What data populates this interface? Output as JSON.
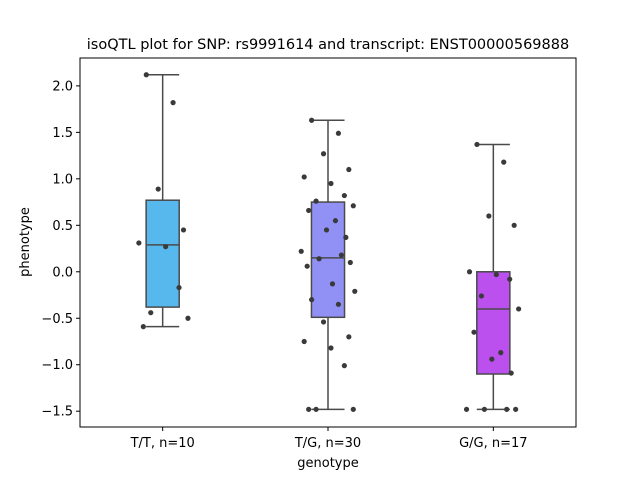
{
  "chart_data": {
    "type": "box",
    "title": "isoQTL plot for SNP: rs9991614 and transcript: ENST00000569888",
    "xlabel": "genotype",
    "ylabel": "phenotype",
    "ylim": [
      -1.67,
      2.3
    ],
    "yticks": [
      2.0,
      1.5,
      1.0,
      0.5,
      0.0,
      -0.5,
      -1.0,
      -1.5
    ],
    "ytick_labels": [
      "2.0",
      "1.5",
      "1.0",
      "0.5",
      "0.0",
      "−0.5",
      "−1.0",
      "−1.5"
    ],
    "grid": false,
    "categories": [
      "T/T, n=10",
      "T/G, n=30",
      "G/G, n=17"
    ],
    "colors": [
      "#57b8ee",
      "#9191f5",
      "#bb50ee"
    ],
    "boxes": [
      {
        "q1": -0.38,
        "median": 0.29,
        "q3": 0.77,
        "whisker_low": -0.59,
        "whisker_high": 2.12
      },
      {
        "q1": -0.49,
        "median": 0.15,
        "q3": 0.75,
        "whisker_low": -1.48,
        "whisker_high": 1.63
      },
      {
        "q1": -1.1,
        "median": -0.4,
        "q3": 0.0,
        "whisker_low": -1.48,
        "whisker_high": 1.37
      }
    ],
    "points": [
      [
        2.12,
        1.82,
        0.89,
        0.45,
        0.31,
        0.27,
        -0.17,
        -0.44,
        -0.5,
        -0.59
      ],
      [
        1.63,
        1.49,
        1.27,
        1.1,
        1.02,
        0.95,
        0.82,
        0.76,
        0.71,
        0.66,
        0.55,
        0.45,
        0.37,
        0.22,
        0.18,
        0.14,
        0.1,
        0.06,
        -0.13,
        -0.21,
        -0.3,
        -0.35,
        -0.54,
        -0.7,
        -0.75,
        -0.82,
        -1.01,
        -1.48,
        -1.48,
        -1.48
      ],
      [
        1.37,
        1.18,
        0.6,
        0.5,
        0.0,
        -0.03,
        -0.08,
        -0.26,
        -0.4,
        -0.65,
        -0.87,
        -0.94,
        -1.09,
        -1.48,
        -1.48,
        -1.48,
        -1.48
      ]
    ]
  }
}
